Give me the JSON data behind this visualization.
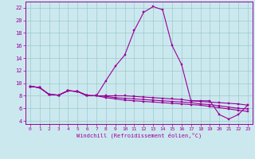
{
  "xlabel": "Windchill (Refroidissement éolien,°C)",
  "background_color": "#cce8ef",
  "line_color": "#990099",
  "grid_color": "#99cccc",
  "xlim": [
    -0.5,
    23.5
  ],
  "ylim": [
    3.5,
    23
  ],
  "xtick_labels": [
    "0",
    "1",
    "2",
    "3",
    "4",
    "5",
    "6",
    "7",
    "8",
    "9",
    "10",
    "11",
    "12",
    "13",
    "14",
    "15",
    "16",
    "17",
    "18",
    "19",
    "20",
    "21",
    "22",
    "23"
  ],
  "xtick_positions": [
    0,
    1,
    2,
    3,
    4,
    5,
    6,
    7,
    8,
    9,
    10,
    11,
    12,
    13,
    14,
    15,
    16,
    17,
    18,
    19,
    20,
    21,
    22,
    23
  ],
  "ytick_positions": [
    4,
    6,
    8,
    10,
    12,
    14,
    16,
    18,
    20,
    22
  ],
  "ytick_labels": [
    "4",
    "6",
    "8",
    "10",
    "12",
    "14",
    "16",
    "18",
    "20",
    "22"
  ],
  "lines": [
    {
      "x": [
        0,
        1,
        2,
        3,
        4,
        5,
        6,
        7,
        8,
        9,
        10,
        11,
        12,
        13,
        14,
        15,
        16,
        17,
        18,
        19,
        20,
        21,
        22,
        23
      ],
      "y": [
        9.5,
        9.3,
        8.2,
        8.1,
        8.8,
        8.7,
        8.1,
        8.0,
        10.4,
        12.7,
        14.5,
        18.4,
        21.3,
        22.2,
        21.7,
        16.0,
        13.0,
        7.2,
        7.2,
        7.2,
        5.0,
        4.3,
        5.0,
        6.5
      ]
    },
    {
      "x": [
        0,
        1,
        2,
        3,
        4,
        5,
        6,
        7,
        8,
        9,
        10,
        11,
        12,
        13,
        14,
        15,
        16,
        17,
        18,
        19,
        20,
        21,
        22,
        23
      ],
      "y": [
        9.5,
        9.3,
        8.2,
        8.1,
        8.8,
        8.7,
        8.0,
        8.0,
        8.0,
        8.0,
        8.0,
        7.9,
        7.8,
        7.7,
        7.6,
        7.5,
        7.4,
        7.2,
        7.1,
        7.0,
        6.9,
        6.8,
        6.7,
        6.5
      ]
    },
    {
      "x": [
        0,
        1,
        2,
        3,
        4,
        5,
        6,
        7,
        8,
        9,
        10,
        11,
        12,
        13,
        14,
        15,
        16,
        17,
        18,
        19,
        20,
        21,
        22,
        23
      ],
      "y": [
        9.5,
        9.3,
        8.2,
        8.1,
        8.8,
        8.7,
        8.0,
        8.0,
        7.9,
        7.7,
        7.6,
        7.5,
        7.4,
        7.3,
        7.2,
        7.1,
        7.0,
        6.9,
        6.7,
        6.6,
        6.4,
        6.2,
        6.0,
        5.9
      ]
    },
    {
      "x": [
        0,
        1,
        2,
        3,
        4,
        5,
        6,
        7,
        8,
        9,
        10,
        11,
        12,
        13,
        14,
        15,
        16,
        17,
        18,
        19,
        20,
        21,
        22,
        23
      ],
      "y": [
        9.5,
        9.3,
        8.2,
        8.1,
        8.8,
        8.7,
        8.0,
        8.0,
        7.7,
        7.5,
        7.3,
        7.2,
        7.1,
        7.0,
        6.9,
        6.8,
        6.7,
        6.6,
        6.5,
        6.3,
        6.1,
        5.9,
        5.7,
        5.5
      ]
    }
  ]
}
